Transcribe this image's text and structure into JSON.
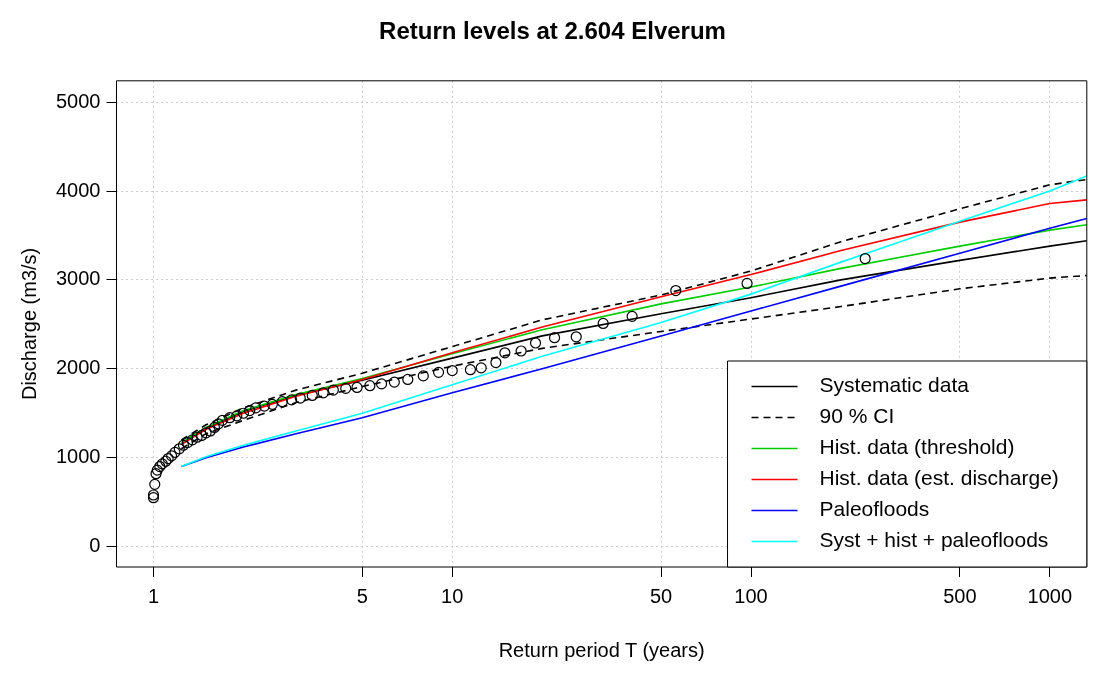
{
  "chart_data": {
    "type": "line",
    "title": "Return levels at 2.604 Elverum",
    "xlabel": "Return period T (years)",
    "ylabel": "Discharge (m3/s)",
    "log": "x",
    "grid": true,
    "legend": "bottom right",
    "xlim": [
      0.752,
      1330
    ],
    "xticks": [
      1,
      5,
      10,
      50,
      100,
      500,
      1000
    ],
    "ylim": [
      -230,
      5240
    ],
    "yticks": [
      0,
      1000,
      2000,
      3000,
      4000,
      5000
    ],
    "x": [
      1.24,
      1.5,
      2,
      3,
      5,
      10,
      20,
      50,
      100,
      200,
      500,
      1000,
      1330
    ],
    "series": [
      {
        "name": "Systematic data",
        "color": "#000000",
        "line_style": "solid",
        "values": [
          1150,
          1330,
          1520,
          1700,
          1870,
          2120,
          2370,
          2620,
          2800,
          3000,
          3220,
          3380,
          3440
        ]
      },
      {
        "name": "90 % CI",
        "color": "#000000",
        "line_style": "dashed",
        "values": [
          1200,
          1370,
          1560,
          1760,
          1950,
          2250,
          2550,
          2830,
          3100,
          3430,
          3800,
          4070,
          4130
        ]
      },
      {
        "color": "#000000",
        "line_style": "dashed",
        "values": [
          1100,
          1270,
          1420,
          1620,
          1800,
          2030,
          2230,
          2420,
          2560,
          2700,
          2900,
          3020,
          3050
        ]
      },
      {
        "name": "Hist. data (threshold)",
        "color": "#00cd00",
        "line_style": "solid",
        "values": [
          1170,
          1340,
          1530,
          1710,
          1890,
          2170,
          2440,
          2730,
          2920,
          3130,
          3380,
          3560,
          3620
        ]
      },
      {
        "name": "Hist. data (est. discharge)",
        "color": "#ff0000",
        "line_style": "solid",
        "values": [
          1150,
          1320,
          1500,
          1690,
          1880,
          2180,
          2470,
          2810,
          3060,
          3330,
          3650,
          3860,
          3900
        ]
      },
      {
        "name": "Paleofloods",
        "color": "#0000ff",
        "line_style": "solid",
        "values": [
          900,
          1000,
          1120,
          1270,
          1450,
          1730,
          2000,
          2370,
          2650,
          2930,
          3300,
          3580,
          3690
        ]
      },
      {
        "name": "Syst + hist + paleofloods",
        "color": "#00ffff",
        "line_style": "solid",
        "values": [
          900,
          1010,
          1140,
          1300,
          1500,
          1820,
          2140,
          2520,
          2840,
          3200,
          3660,
          4000,
          4170
        ]
      },
      {
        "type": "scatter",
        "color": "#000000",
        "marker": "circle",
        "x": [
          1.0,
          1.0,
          1.01,
          1.02,
          1.03,
          1.05,
          1.07,
          1.1,
          1.12,
          1.15,
          1.18,
          1.22,
          1.26,
          1.3,
          1.35,
          1.4,
          1.45,
          1.5,
          1.55,
          1.6,
          1.65,
          1.7,
          1.8,
          1.9,
          2.0,
          2.1,
          2.2,
          2.35,
          2.5,
          2.7,
          2.9,
          3.1,
          3.4,
          3.7,
          4.0,
          4.4,
          4.8,
          5.3,
          5.8,
          6.4,
          7.1,
          8,
          9,
          10,
          11.5,
          12.5,
          14,
          15,
          17,
          19,
          22,
          26,
          32,
          40,
          56,
          97,
          241
        ],
        "values": [
          550,
          580,
          700,
          820,
          860,
          900,
          930,
          960,
          990,
          1020,
          1060,
          1100,
          1140,
          1170,
          1200,
          1230,
          1250,
          1280,
          1300,
          1340,
          1380,
          1420,
          1450,
          1470,
          1500,
          1530,
          1560,
          1580,
          1600,
          1630,
          1650,
          1670,
          1700,
          1730,
          1760,
          1780,
          1790,
          1810,
          1830,
          1850,
          1880,
          1920,
          1960,
          1980,
          1990,
          2010,
          2070,
          2180,
          2200,
          2290,
          2350,
          2360,
          2510,
          2590,
          2880,
          2960,
          3240
        ]
      }
    ]
  }
}
